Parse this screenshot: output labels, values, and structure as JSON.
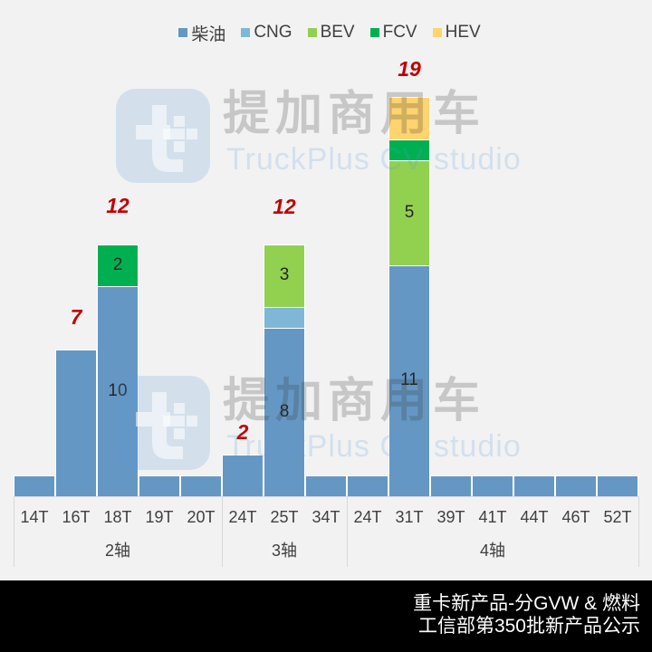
{
  "chart_data": {
    "type": "bar",
    "stacked": true,
    "title": "",
    "xlabel": "",
    "ylabel": "",
    "legend_position": "top",
    "grid": false,
    "categories": [
      "14T",
      "16T",
      "18T",
      "19T",
      "20T",
      "24T",
      "25T",
      "34T",
      "24T",
      "31T",
      "39T",
      "41T",
      "44T",
      "46T",
      "52T"
    ],
    "groups": [
      {
        "label": "2轴",
        "count": 5
      },
      {
        "label": "3轴",
        "count": 3
      },
      {
        "label": "4轴",
        "count": 7
      }
    ],
    "series": [
      {
        "name": "柴油",
        "color": "#6497c4",
        "values": [
          1,
          7,
          10,
          1,
          1,
          2,
          8,
          1,
          1,
          11,
          1,
          1,
          1,
          1,
          1
        ]
      },
      {
        "name": "CNG",
        "color": "#7fb7d7",
        "values": [
          0,
          0,
          0,
          0,
          0,
          0,
          1,
          0,
          0,
          0,
          0,
          0,
          0,
          0,
          0
        ]
      },
      {
        "name": "BEV",
        "color": "#92d050",
        "values": [
          0,
          0,
          0,
          0,
          0,
          0,
          3,
          0,
          0,
          5,
          0,
          0,
          0,
          0,
          0
        ]
      },
      {
        "name": "FCV",
        "color": "#00b050",
        "values": [
          0,
          0,
          2,
          0,
          0,
          0,
          0,
          0,
          0,
          1,
          0,
          0,
          0,
          0,
          0
        ]
      },
      {
        "name": "HEV",
        "color": "#ffd36e",
        "values": [
          0,
          0,
          0,
          0,
          0,
          0,
          0,
          0,
          0,
          2,
          0,
          0,
          0,
          0,
          0
        ]
      }
    ],
    "segment_labels": [
      {
        "category_index": 2,
        "series": "柴油",
        "text": "10"
      },
      {
        "category_index": 2,
        "series": "FCV",
        "text": "2"
      },
      {
        "category_index": 6,
        "series": "柴油",
        "text": "8"
      },
      {
        "category_index": 6,
        "series": "BEV",
        "text": "3"
      },
      {
        "category_index": 9,
        "series": "柴油",
        "text": "11"
      },
      {
        "category_index": 9,
        "series": "BEV",
        "text": "5"
      }
    ],
    "total_labels": [
      {
        "category_index": 1,
        "text": "7"
      },
      {
        "category_index": 2,
        "text": "12"
      },
      {
        "category_index": 5,
        "text": "2"
      },
      {
        "category_index": 6,
        "text": "12"
      },
      {
        "category_index": 9,
        "text": "19"
      }
    ],
    "label_color": "#c00000"
  },
  "watermark": {
    "cn": "提加商用车",
    "en": "TruckPlus CV studio"
  },
  "banner": {
    "line1": "重卡新产品-分GVW & 燃料",
    "line2": "工信部第350批新产品公示"
  }
}
